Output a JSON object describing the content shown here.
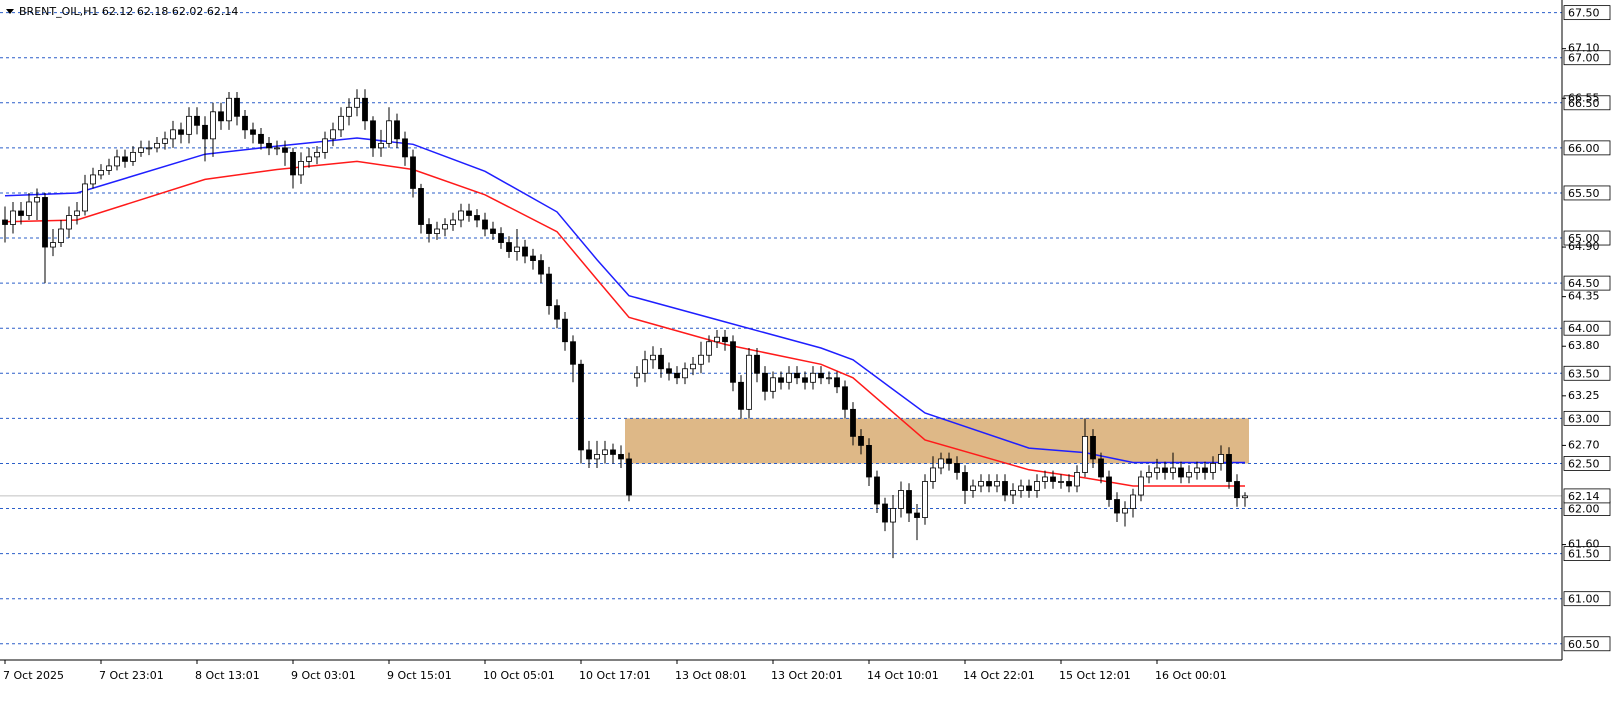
{
  "chart_data": {
    "type": "candlestick",
    "title": "BRENT_OIL,H1  62.12 62.18 62.02 62.14",
    "categories": [
      "7 Oct 2025",
      null,
      null,
      null,
      null,
      null,
      null,
      null,
      null,
      null,
      null,
      null,
      "7 Oct 23:01",
      null,
      null,
      null,
      null,
      null,
      null,
      null,
      null,
      null,
      null,
      null,
      "8 Oct 13:01",
      null,
      null,
      null,
      null,
      null,
      null,
      null,
      null,
      null,
      null,
      null,
      "9 Oct 03:01",
      null,
      null,
      null,
      null,
      null,
      null,
      null,
      null,
      null,
      null,
      null,
      "9 Oct 15:01",
      null,
      null,
      null,
      null,
      null,
      null,
      null,
      null,
      null,
      null,
      null,
      "10 Oct 05:01",
      null,
      null,
      null,
      null,
      null,
      null,
      null,
      null,
      null,
      null,
      null,
      "10 Oct 17:01",
      null,
      null,
      null,
      null,
      null,
      null,
      null,
      null,
      null,
      null,
      null,
      "13 Oct 08:01",
      null,
      null,
      null,
      null,
      null,
      null,
      null,
      null,
      null,
      null,
      null,
      "13 Oct 20:01",
      null,
      null,
      null,
      null,
      null,
      null,
      null,
      null,
      null,
      null,
      null,
      "14 Oct 10:01",
      null,
      null,
      null,
      null,
      null,
      null,
      null,
      null,
      null,
      null,
      null,
      "14 Oct 22:01",
      null,
      null,
      null,
      null,
      null,
      null,
      null,
      null,
      null,
      null,
      null,
      "15 Oct 12:01",
      null,
      null,
      null,
      null,
      null,
      null,
      null,
      null,
      null,
      null,
      null,
      "16 Oct 00:01",
      null,
      null,
      null,
      null,
      null,
      null,
      null,
      null,
      null,
      null,
      null
    ],
    "open": [
      65.2,
      65.15,
      65.3,
      65.25,
      65.4,
      65.45,
      64.9,
      64.95,
      65.1,
      65.25,
      65.3,
      65.6,
      65.7,
      65.75,
      65.8,
      65.9,
      65.85,
      65.95,
      66.0,
      66.0,
      66.05,
      66.1,
      66.2,
      66.15,
      66.35,
      66.25,
      66.1,
      66.4,
      66.3,
      66.55,
      66.35,
      66.2,
      66.15,
      66.05,
      66.0,
      66.0,
      65.95,
      65.7,
      65.85,
      65.9,
      65.95,
      66.1,
      66.2,
      66.35,
      66.45,
      66.55,
      66.3,
      66.0,
      66.05,
      66.3,
      66.1,
      65.9,
      65.55,
      65.15,
      65.05,
      65.1,
      65.15,
      65.2,
      65.3,
      65.25,
      65.2,
      65.1,
      65.05,
      64.95,
      64.85,
      64.9,
      64.8,
      64.75,
      64.6,
      64.25,
      64.1,
      63.85,
      63.6,
      62.65,
      62.55,
      62.6,
      62.65,
      62.6,
      62.55,
      63.45,
      63.5,
      63.65,
      63.7,
      63.55,
      63.5,
      63.45,
      63.55,
      63.6,
      63.7,
      63.85,
      63.9,
      63.85,
      63.4,
      63.1,
      63.7,
      63.5,
      63.3,
      63.45,
      63.4,
      63.5,
      63.45,
      63.4,
      63.5,
      63.45,
      63.45,
      63.35,
      63.1,
      62.8,
      62.7,
      62.35,
      62.05,
      61.85,
      62.0,
      62.2,
      61.95,
      61.9,
      62.3,
      62.45,
      62.55,
      62.5,
      62.4,
      62.2,
      62.25,
      62.3,
      62.25,
      62.3,
      62.15,
      62.2,
      62.25,
      62.2,
      62.3,
      62.35,
      62.3,
      62.3,
      62.25,
      62.4,
      62.8,
      62.55,
      62.35,
      62.1,
      61.95,
      62.0,
      62.15,
      62.35,
      62.4,
      62.45,
      62.4,
      62.45,
      62.35,
      62.4,
      62.45,
      62.4,
      62.5,
      62.6,
      62.3,
      62.12
    ],
    "high": [
      65.35,
      65.4,
      65.4,
      65.5,
      65.55,
      65.5,
      65.1,
      65.2,
      65.35,
      65.4,
      65.7,
      65.78,
      65.82,
      65.88,
      65.98,
      65.98,
      66.02,
      66.08,
      66.08,
      66.12,
      66.18,
      66.3,
      66.28,
      66.45,
      66.45,
      66.35,
      66.5,
      66.5,
      66.62,
      66.62,
      66.42,
      66.28,
      66.22,
      66.12,
      66.08,
      66.08,
      66.0,
      65.95,
      66.0,
      66.02,
      66.18,
      66.28,
      66.45,
      66.55,
      66.65,
      66.65,
      66.35,
      66.2,
      66.45,
      66.38,
      66.18,
      65.98,
      65.6,
      65.22,
      65.18,
      65.22,
      65.28,
      65.38,
      65.38,
      65.32,
      65.28,
      65.18,
      65.12,
      65.02,
      65.1,
      64.98,
      64.88,
      64.82,
      64.68,
      64.32,
      64.18,
      63.92,
      63.65,
      62.75,
      62.75,
      62.75,
      62.72,
      62.7,
      62.62,
      63.58,
      63.75,
      63.8,
      63.78,
      63.62,
      63.58,
      63.62,
      63.68,
      63.85,
      63.92,
      63.98,
      63.98,
      63.92,
      63.48,
      63.78,
      63.78,
      63.58,
      63.52,
      63.52,
      63.58,
      63.58,
      63.52,
      63.58,
      63.58,
      63.52,
      63.52,
      63.42,
      63.18,
      62.88,
      62.78,
      62.42,
      62.12,
      62.15,
      62.3,
      62.28,
      62.05,
      62.38,
      62.58,
      62.62,
      62.62,
      62.58,
      62.48,
      62.32,
      62.38,
      62.38,
      62.38,
      62.38,
      62.28,
      62.32,
      62.32,
      62.38,
      62.42,
      62.42,
      62.38,
      62.38,
      62.48,
      63.0,
      62.88,
      62.62,
      62.42,
      62.18,
      62.08,
      62.22,
      62.42,
      62.48,
      62.55,
      62.52,
      62.62,
      62.52,
      62.48,
      62.52,
      62.52,
      62.58,
      62.7,
      62.68,
      62.38,
      62.18
    ],
    "low": [
      64.95,
      65.05,
      65.15,
      65.2,
      65.2,
      64.5,
      64.8,
      64.9,
      65.0,
      65.15,
      65.25,
      65.55,
      65.65,
      65.7,
      65.75,
      65.78,
      65.8,
      65.9,
      65.92,
      65.95,
      65.98,
      66.0,
      66.05,
      66.05,
      66.15,
      65.85,
      65.9,
      66.2,
      66.2,
      66.25,
      66.1,
      66.05,
      65.98,
      65.92,
      65.92,
      65.8,
      65.55,
      65.6,
      65.78,
      65.82,
      65.88,
      66.02,
      66.12,
      66.25,
      66.35,
      66.2,
      65.9,
      65.9,
      66.0,
      66.0,
      65.8,
      65.45,
      65.05,
      64.95,
      64.98,
      65.02,
      65.08,
      65.12,
      65.18,
      65.12,
      65.02,
      64.98,
      64.88,
      64.78,
      64.75,
      64.72,
      64.65,
      64.5,
      64.15,
      64.0,
      63.75,
      63.4,
      62.5,
      62.45,
      62.45,
      62.5,
      62.5,
      62.45,
      62.08,
      63.35,
      63.4,
      63.55,
      63.45,
      63.42,
      63.38,
      63.38,
      63.48,
      63.5,
      63.62,
      63.78,
      63.75,
      63.3,
      63.0,
      63.0,
      63.4,
      63.2,
      63.22,
      63.32,
      63.32,
      63.38,
      63.32,
      63.32,
      63.38,
      63.38,
      63.28,
      63.0,
      62.7,
      62.6,
      62.25,
      61.95,
      61.75,
      61.45,
      61.9,
      61.85,
      61.65,
      61.82,
      62.22,
      62.38,
      62.42,
      62.32,
      62.05,
      62.12,
      62.18,
      62.18,
      62.18,
      62.08,
      62.05,
      62.12,
      62.12,
      62.12,
      62.22,
      62.22,
      62.22,
      62.18,
      62.18,
      62.35,
      62.45,
      62.28,
      62.02,
      61.85,
      61.8,
      61.9,
      62.08,
      62.28,
      62.32,
      62.32,
      62.32,
      62.28,
      62.28,
      62.32,
      62.32,
      62.32,
      62.42,
      62.22,
      62.02,
      62.02
    ],
    "close": [
      65.15,
      65.3,
      65.25,
      65.4,
      65.45,
      64.9,
      64.95,
      65.1,
      65.25,
      65.3,
      65.6,
      65.7,
      65.75,
      65.8,
      65.9,
      65.85,
      65.95,
      66.0,
      66.0,
      66.05,
      66.1,
      66.2,
      66.15,
      66.35,
      66.25,
      66.1,
      66.4,
      66.3,
      66.55,
      66.35,
      66.2,
      66.15,
      66.05,
      66.0,
      66.0,
      65.95,
      65.7,
      65.85,
      65.9,
      65.95,
      66.1,
      66.2,
      66.35,
      66.45,
      66.55,
      66.3,
      66.0,
      66.05,
      66.3,
      66.1,
      65.9,
      65.55,
      65.15,
      65.05,
      65.1,
      65.15,
      65.2,
      65.3,
      65.25,
      65.2,
      65.1,
      65.05,
      64.95,
      64.85,
      64.9,
      64.8,
      64.75,
      64.6,
      64.25,
      64.1,
      63.85,
      63.6,
      62.65,
      62.55,
      62.6,
      62.65,
      62.6,
      62.55,
      62.15,
      63.5,
      63.65,
      63.7,
      63.55,
      63.5,
      63.45,
      63.55,
      63.6,
      63.7,
      63.85,
      63.9,
      63.85,
      63.4,
      63.1,
      63.7,
      63.5,
      63.3,
      63.45,
      63.4,
      63.5,
      63.45,
      63.4,
      63.5,
      63.45,
      63.45,
      63.35,
      63.1,
      62.8,
      62.7,
      62.35,
      62.05,
      61.85,
      62.0,
      62.2,
      61.95,
      61.9,
      62.3,
      62.45,
      62.55,
      62.5,
      62.4,
      62.2,
      62.25,
      62.3,
      62.25,
      62.3,
      62.15,
      62.2,
      62.25,
      62.2,
      62.3,
      62.35,
      62.3,
      62.3,
      62.25,
      62.4,
      62.8,
      62.55,
      62.35,
      62.1,
      61.95,
      62.0,
      62.15,
      62.35,
      62.4,
      62.45,
      62.4,
      62.45,
      62.35,
      62.4,
      62.45,
      62.4,
      62.5,
      62.6,
      62.3,
      62.12,
      62.14
    ],
    "up_color": "#ffffff",
    "down_color": "#000000",
    "wick_color": "#000000",
    "series": [
      {
        "color": "#1f1fff",
        "x": [
          0,
          9,
          25,
          34,
          44,
          51,
          60,
          69,
          74,
          78,
          90,
          102,
          106,
          115,
          128,
          135,
          141,
          155
        ],
        "values": [
          65.47,
          65.5,
          65.93,
          66.02,
          66.11,
          66.04,
          65.74,
          65.29,
          64.76,
          64.36,
          64.07,
          63.78,
          63.65,
          63.06,
          62.67,
          62.62,
          62.51,
          62.51
        ]
      },
      {
        "color": "#ff1a1a",
        "x": [
          0,
          9,
          25,
          34,
          44,
          51,
          60,
          69,
          74,
          78,
          90,
          102,
          106,
          115,
          128,
          135,
          141,
          155
        ],
        "values": [
          65.18,
          65.2,
          65.65,
          65.76,
          65.85,
          65.76,
          65.48,
          65.07,
          64.54,
          64.12,
          63.82,
          63.6,
          63.45,
          62.76,
          62.43,
          62.34,
          62.25,
          62.25
        ]
      }
    ],
    "zone": {
      "x": [
        78,
        155
      ],
      "ylim": [
        62.5,
        63.0
      ],
      "color": "#deb887"
    },
    "levels": [
      {
        "value": 67.5,
        "label": "67.50"
      },
      {
        "value": 67,
        "label": "67.00"
      },
      {
        "value": 66.5,
        "label": "66.50"
      },
      {
        "value": 66,
        "label": "66.00"
      },
      {
        "value": 65.5,
        "label": "65.50"
      },
      {
        "value": 65,
        "label": "65.00"
      },
      {
        "value": 64.5,
        "label": "64.50"
      },
      {
        "value": 64,
        "label": "64.00"
      },
      {
        "value": 63.5,
        "label": "63.50"
      },
      {
        "value": 63,
        "label": "63.00"
      },
      {
        "value": 62.5,
        "label": "62.50"
      },
      {
        "value": 62,
        "label": "62.00"
      },
      {
        "value": 61.5,
        "label": "61.50"
      },
      {
        "value": 61,
        "label": "61.00"
      },
      {
        "value": 60.5,
        "label": "60.50"
      }
    ],
    "level_color": "#2b5fc9",
    "yticks": [
      {
        "value": 67.1,
        "label": "67.10"
      },
      66.55,
      {
        "value": 64.9,
        "label": "64.90"
      },
      64.35,
      {
        "value": 63.8,
        "label": "63.80"
      },
      63.25,
      {
        "value": 62.7,
        "label": "62.70"
      },
      {
        "value": 61.6,
        "label": "61.60"
      }
    ],
    "ylim": [
      60.32,
      67.64
    ]
  }
}
